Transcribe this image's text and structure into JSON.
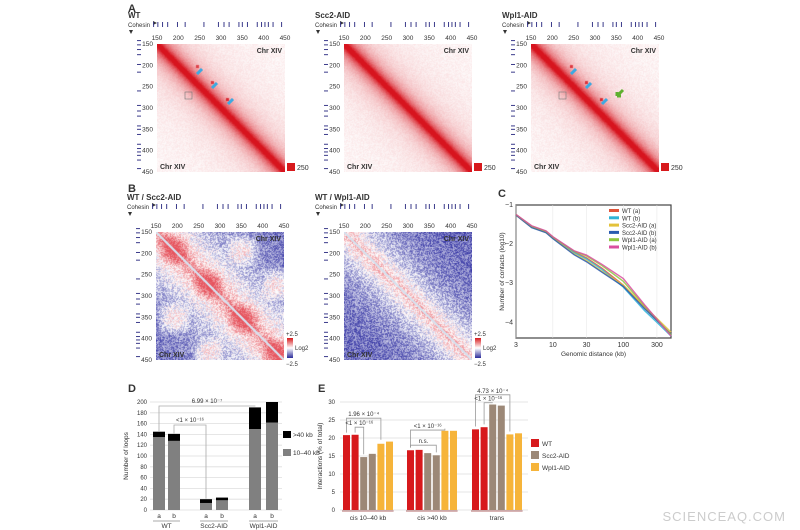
{
  "panels": {
    "A": "A",
    "B": "B",
    "C": "C",
    "D": "D",
    "E": "E"
  },
  "watermark": "SCIENCEAQ.COM",
  "cohesin_label": "Cohesin",
  "chrom_label": "Chr XIV",
  "cohesin_sites_kb": [
    142,
    152,
    163,
    175,
    198,
    216,
    260,
    294,
    307,
    319,
    342,
    350,
    362,
    385,
    395,
    403,
    411,
    422,
    442
  ],
  "heatmaps": [
    {
      "panel": "A",
      "title": "WT",
      "type": "contacts",
      "colorbar_max": "250",
      "axis_ticks": [
        "150",
        "200",
        "250",
        "300",
        "350",
        "400",
        "450"
      ]
    },
    {
      "panel": "A",
      "title": "Scc2-AID",
      "type": "contacts",
      "colorbar_max": "250",
      "axis_ticks": [
        "150",
        "200",
        "250",
        "300",
        "350",
        "400",
        "450"
      ]
    },
    {
      "panel": "A",
      "title": "Wpl1-AID",
      "type": "contacts",
      "colorbar_max": "250",
      "axis_ticks": [
        "150",
        "200",
        "250",
        "300",
        "350",
        "400",
        "450"
      ]
    },
    {
      "panel": "B",
      "title": "WT / Scc2-AID",
      "type": "ratio",
      "colorbar_top": "+2.5",
      "colorbar_bottom": "−2.5",
      "colorbar_unit": "Log2",
      "axis_ticks": [
        "150",
        "200",
        "250",
        "300",
        "350",
        "400",
        "450"
      ]
    },
    {
      "panel": "B",
      "title": "WT / Wpl1-AID",
      "type": "ratio",
      "colorbar_top": "+2.5",
      "colorbar_bottom": "−2.5",
      "colorbar_unit": "Log2",
      "axis_ticks": [
        "150",
        "200",
        "250",
        "300",
        "350",
        "400",
        "450"
      ]
    }
  ],
  "chart_data": [
    {
      "panel": "C",
      "type": "line",
      "xscale": "log",
      "xlabel": "Genomic distance (kb)",
      "ylabel": "Number of contacts (log10)",
      "xlim": [
        3,
        475
      ],
      "ylim": [
        -4.4,
        -1
      ],
      "xticks": [
        "3",
        "10",
        "30",
        "100",
        "300"
      ],
      "yticks": [
        "-1",
        "-2",
        "-3",
        "-4"
      ],
      "legend": "top-right",
      "x": [
        3,
        5,
        8,
        10,
        20,
        30,
        50,
        100,
        200,
        300,
        475
      ],
      "series": [
        {
          "name": "WT (a)",
          "color": "#e0543a",
          "values": [
            -1.25,
            -1.55,
            -1.68,
            -1.83,
            -2.2,
            -2.35,
            -2.62,
            -3.05,
            -3.62,
            -3.95,
            -4.3
          ]
        },
        {
          "name": "WT (b)",
          "color": "#2fb3d6",
          "values": [
            -1.25,
            -1.56,
            -1.69,
            -1.85,
            -2.22,
            -2.38,
            -2.65,
            -3.1,
            -3.7,
            -4.0,
            -4.35
          ]
        },
        {
          "name": "Scc2-AID (a)",
          "color": "#e3c23a",
          "values": [
            -1.26,
            -1.57,
            -1.7,
            -1.85,
            -2.25,
            -2.42,
            -2.7,
            -3.05,
            -3.6,
            -3.9,
            -4.25
          ]
        },
        {
          "name": "Scc2-AID (b)",
          "color": "#2a5bb0",
          "values": [
            -1.26,
            -1.58,
            -1.71,
            -1.86,
            -2.27,
            -2.45,
            -2.72,
            -3.08,
            -3.65,
            -3.95,
            -4.3
          ]
        },
        {
          "name": "Wpl1-AID (a)",
          "color": "#8dc63f",
          "values": [
            -1.24,
            -1.54,
            -1.67,
            -1.82,
            -2.18,
            -2.3,
            -2.55,
            -2.95,
            -3.58,
            -3.92,
            -4.32
          ]
        },
        {
          "name": "Wpl1-AID (b)",
          "color": "#d94fa0",
          "values": [
            -1.24,
            -1.53,
            -1.66,
            -1.81,
            -2.17,
            -2.28,
            -2.52,
            -2.88,
            -3.55,
            -3.92,
            -4.35
          ]
        }
      ]
    },
    {
      "panel": "D",
      "type": "bar",
      "stacked": true,
      "ylabel": "Number of loops",
      "ylim": [
        0,
        200
      ],
      "yticks": [
        "0",
        "20",
        "40",
        "60",
        "80",
        "100",
        "120",
        "140",
        "160",
        "180",
        "200"
      ],
      "groups": [
        "WT",
        "Scc2-AID",
        "Wpl1-AID"
      ],
      "replicates": [
        "a",
        "b"
      ],
      "series": [
        {
          "name": "10–40 kb",
          "color": "#808080",
          "values": [
            135,
            128,
            13,
            18,
            150,
            162
          ]
        },
        {
          "name": ">40 kb",
          "color": "#000000",
          "values": [
            10,
            13,
            7,
            5,
            40,
            38
          ]
        }
      ],
      "annotations": [
        {
          "text": "6.99 × 10⁻⁷",
          "between": [
            "WT a",
            "Wpl1-AID a"
          ]
        },
        {
          "text": "<1 × 10⁻¹⁶",
          "between": [
            "WT b",
            "Scc2-AID a"
          ]
        }
      ]
    },
    {
      "panel": "E",
      "type": "bar",
      "ylabel": "Interactions (% of total)",
      "ylim": [
        0,
        30
      ],
      "yticks": [
        "0",
        "5",
        "10",
        "15",
        "20",
        "25",
        "30"
      ],
      "categories": [
        "cis 10–40 kb",
        "cis >40 kb",
        "trans"
      ],
      "series": [
        {
          "name": "WT",
          "color": "#d7191c",
          "values": [
            [
              20.8,
              20.9
            ],
            [
              16.6,
              16.7
            ],
            [
              22.4,
              23.0
            ]
          ]
        },
        {
          "name": "Scc2-AID",
          "color": "#9c8877",
          "values": [
            [
              14.7,
              15.6
            ],
            [
              15.8,
              15.2
            ],
            [
              29.3,
              29.0
            ]
          ]
        },
        {
          "name": "Wpl1-AID",
          "color": "#f6b43a",
          "values": [
            [
              18.4,
              19.0
            ],
            [
              22.0,
              22.0
            ],
            [
              21.0,
              21.3
            ]
          ]
        }
      ],
      "annotations": [
        {
          "text": "1.96 × 10⁻⁴",
          "category": "cis 10–40 kb"
        },
        {
          "text": "<1 × 10⁻¹⁶",
          "category": "cis 10–40 kb"
        },
        {
          "text": "<1 × 10⁻¹⁶",
          "category": "cis >40 kb"
        },
        {
          "text": "n.s.",
          "category": "cis >40 kb"
        },
        {
          "text": "4.73 × 10⁻⁴",
          "category": "trans"
        },
        {
          "text": "<1 × 10⁻¹⁶",
          "category": "trans"
        }
      ]
    }
  ]
}
